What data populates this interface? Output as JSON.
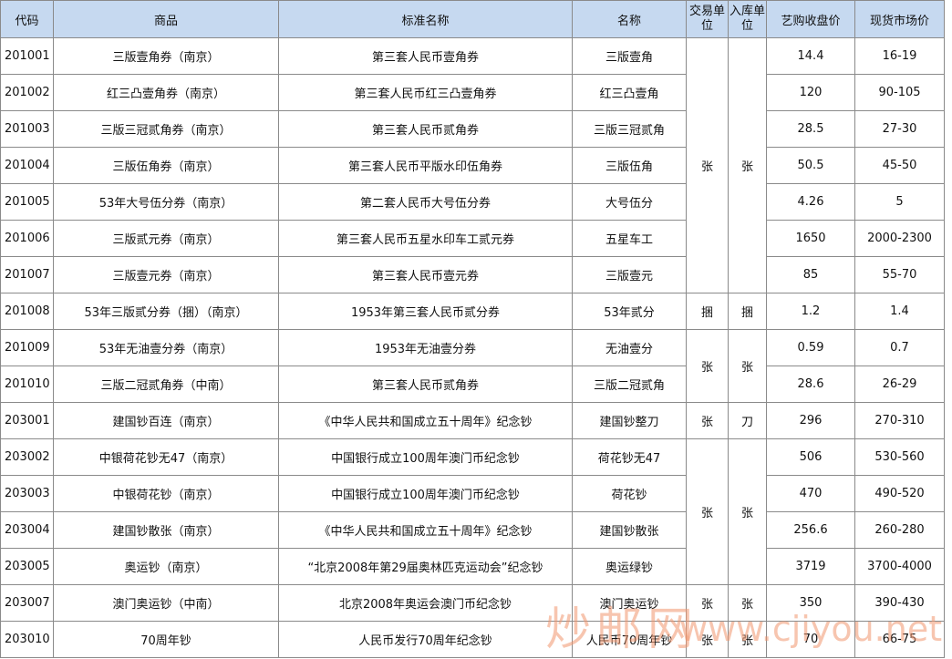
{
  "table": {
    "headers": [
      "代码",
      "商品",
      "标准名称",
      "名称",
      "交易单位",
      "入库单位",
      "艺购收盘价",
      "现货市场价"
    ],
    "rows": [
      [
        "201001",
        "三版壹角券（南京）",
        "第三套人民币壹角券",
        "三版壹角",
        "14.4",
        "16-19"
      ],
      [
        "201002",
        "红三凸壹角券（南京）",
        "第三套人民币红三凸壹角券",
        "红三凸壹角",
        "120",
        "90-105"
      ],
      [
        "201003",
        "三版三冠贰角券（南京）",
        "第三套人民币贰角券",
        "三版三冠贰角",
        "28.5",
        "27-30"
      ],
      [
        "201004",
        "三版伍角券（南京）",
        "第三套人民币平版水印伍角券",
        "三版伍角",
        "50.5",
        "45-50"
      ],
      [
        "201005",
        "53年大号伍分券（南京）",
        "第二套人民币大号伍分券",
        "大号伍分",
        "4.26",
        "5"
      ],
      [
        "201006",
        "三版贰元券（南京）",
        "第三套人民币五星水印车工贰元券",
        "五星车工",
        "1650",
        "2000-2300"
      ],
      [
        "201007",
        "三版壹元券（南京）",
        "第三套人民币壹元券",
        "三版壹元",
        "85",
        "55-70"
      ],
      [
        "201008",
        "53年三版贰分券（捆）（南京）",
        "1953年第三套人民币贰分券",
        "53年贰分",
        "1.2",
        "1.4"
      ],
      [
        "201009",
        "53年无油壹分券（南京）",
        "1953年无油壹分券",
        "无油壹分",
        "0.59",
        "0.7"
      ],
      [
        "201010",
        "三版二冠贰角券（中南）",
        "第三套人民币贰角券",
        "三版二冠贰角",
        "28.6",
        "26-29"
      ],
      [
        "203001",
        "建国钞百连（南京）",
        "《中华人民共和国成立五十周年》纪念钞",
        "建国钞整刀",
        "296",
        "270-310"
      ],
      [
        "203002",
        "中银荷花钞无47（南京）",
        "中国银行成立100周年澳门币纪念钞",
        "荷花钞无47",
        "506",
        "530-560"
      ],
      [
        "203003",
        "中银荷花钞（南京）",
        "中国银行成立100周年澳门币纪念钞",
        "荷花钞",
        "470",
        "490-520"
      ],
      [
        "203004",
        "建国钞散张（南京）",
        "《中华人民共和国成立五十周年》纪念钞",
        "建国钞散张",
        "256.6",
        "260-280"
      ],
      [
        "203005",
        "奥运钞（南京）",
        "“北京2008年第29届奥林匹克运动会”纪念钞",
        "奥运绿钞",
        "3719",
        "3700-4000"
      ],
      [
        "203007",
        "澳门奥运钞（中南）",
        "北京2008年奥运会澳门币纪念钞",
        "澳门奥运钞",
        "350",
        "390-430"
      ],
      [
        "203010",
        "70周年钞",
        "人民币发行70周年纪念钞",
        "人民币70周年钞",
        "70",
        "66-75"
      ]
    ],
    "units": [
      [
        "张",
        "张"
      ],
      [
        "捆",
        "捆"
      ],
      [
        "张",
        "张"
      ],
      [
        "张",
        "刀"
      ],
      [
        "张",
        "张"
      ],
      [
        "张",
        "张"
      ],
      [
        "张",
        "张"
      ]
    ]
  },
  "watermark": {
    "site": "炒邮网",
    "url": "www.cjiyou.net"
  }
}
